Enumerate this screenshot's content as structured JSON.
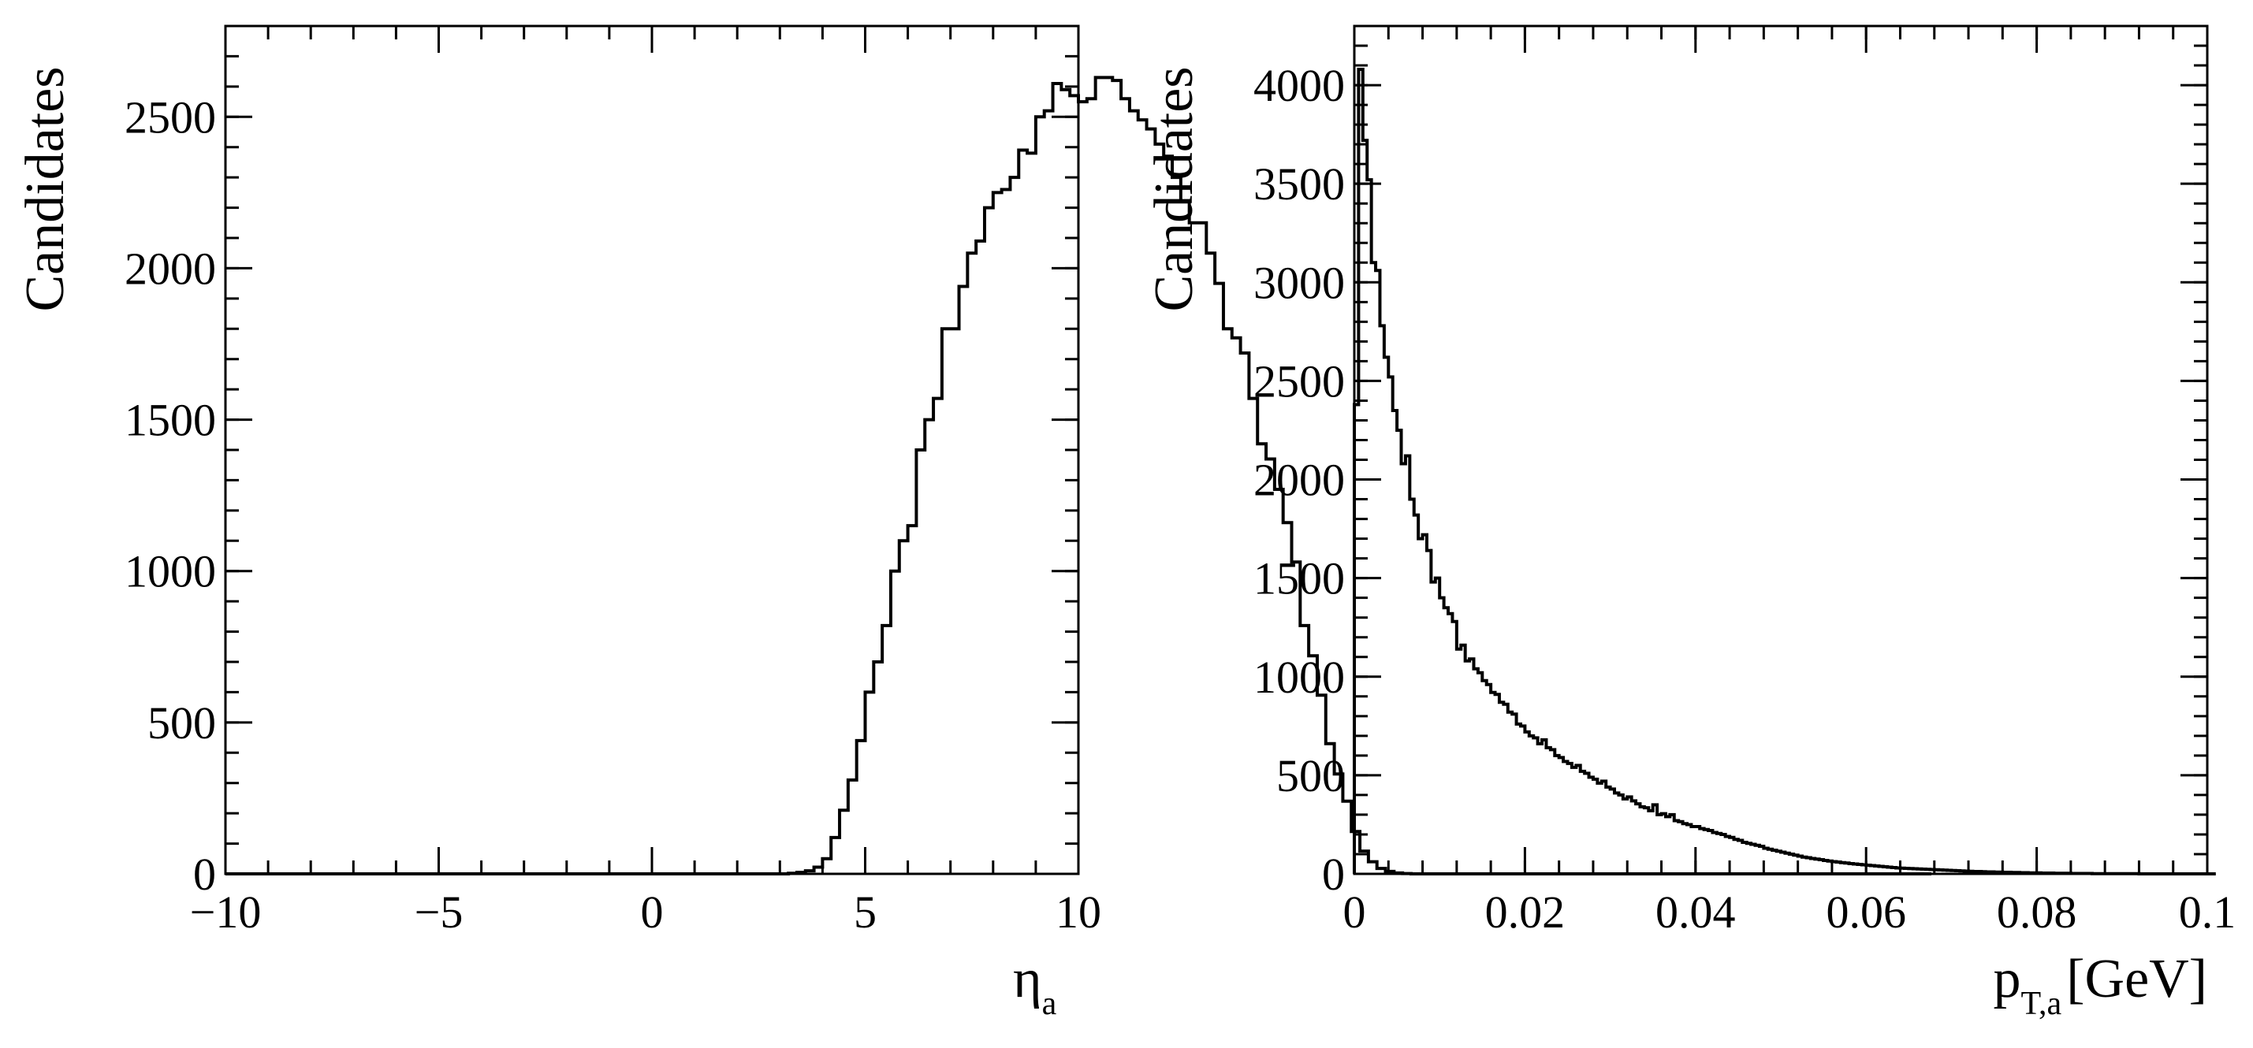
{
  "chart_data": [
    {
      "type": "histogram",
      "ylabel": "Candidates",
      "xlabel_main": "η",
      "xlabel_sub": "a",
      "xlim": [
        -10,
        10
      ],
      "ylim": [
        0,
        2800
      ],
      "xticks": [
        -10,
        -5,
        0,
        5,
        10
      ],
      "xtick_labels": [
        "−10",
        "−5",
        "0",
        "5",
        "10"
      ],
      "yticks": [
        0,
        500,
        1000,
        1500,
        2000,
        2500
      ],
      "ytick_labels": [
        "0",
        "500",
        "1000",
        "1500",
        "2000",
        "2500"
      ],
      "grid": false,
      "legend": "none",
      "line_color": "#000000",
      "bin_start": -10,
      "bin_width": 0.2,
      "values": [
        0,
        0,
        0,
        0,
        0,
        0,
        0,
        0,
        0,
        0,
        0,
        0,
        0,
        0,
        0,
        0,
        0,
        0,
        0,
        0,
        0,
        0,
        0,
        0,
        0,
        0,
        0,
        0,
        0,
        0,
        0,
        0,
        0,
        0,
        0,
        0,
        0,
        0,
        0,
        0,
        0,
        0,
        0,
        0,
        0,
        0,
        0,
        0,
        0,
        0,
        0,
        0,
        0,
        0,
        0,
        0,
        0,
        0,
        0,
        0,
        0,
        0,
        0,
        0,
        0,
        0,
        2,
        5,
        10,
        22,
        50,
        120,
        210,
        310,
        440,
        600,
        700,
        820,
        1000,
        1100,
        1150,
        1400,
        1500,
        1570,
        1800,
        1800,
        1940,
        2050,
        2090,
        2200,
        2250,
        2260,
        2300,
        2390,
        2380,
        2500,
        2520,
        2610,
        2590,
        2570,
        2550,
        2560,
        2630,
        2630,
        2620,
        2560,
        2520,
        2490,
        2460,
        2410,
        2370,
        2300,
        2220,
        2150,
        2150,
        2050,
        1950,
        1800,
        1770,
        1720,
        1570,
        1420,
        1370,
        1270,
        1160,
        1030,
        820,
        720,
        590,
        430,
        330,
        240,
        140,
        75,
        40,
        18,
        8,
        3,
        1,
        0,
        0,
        0,
        0,
        0,
        0,
        0,
        0,
        0,
        0,
        0,
        0,
        0,
        0,
        0,
        0,
        0,
        0,
        0,
        0,
        0,
        0,
        0,
        0,
        0,
        0,
        0,
        0,
        0,
        0,
        0,
        0,
        0,
        0,
        0,
        0,
        0,
        0,
        0,
        0,
        0,
        0,
        0,
        0,
        0,
        0,
        0,
        0,
        0,
        0,
        0,
        0,
        0,
        0,
        0,
        0,
        0,
        0,
        0,
        0,
        0
      ]
    },
    {
      "type": "histogram",
      "ylabel": "Candidates",
      "xlabel_main": "p",
      "xlabel_sub": "T,a",
      "xlabel_unit": "[GeV]",
      "xlim": [
        0,
        0.1
      ],
      "ylim": [
        0,
        4300
      ],
      "xticks": [
        0,
        0.02,
        0.04,
        0.06,
        0.08,
        0.1
      ],
      "xtick_labels": [
        "0",
        "0.02",
        "0.04",
        "0.06",
        "0.08",
        "0.1"
      ],
      "yticks": [
        0,
        500,
        1000,
        1500,
        2000,
        2500,
        3000,
        3500,
        4000
      ],
      "ytick_labels": [
        "0",
        "500",
        "1000",
        "1500",
        "2000",
        "2500",
        "3000",
        "3500",
        "4000"
      ],
      "grid": false,
      "legend": "none",
      "line_color": "#000000",
      "bin_start": 0,
      "bin_width": 0.0005,
      "values": [
        2380,
        4080,
        3720,
        3520,
        3100,
        3060,
        2780,
        2620,
        2520,
        2350,
        2250,
        2080,
        2120,
        1900,
        1820,
        1700,
        1720,
        1640,
        1480,
        1500,
        1400,
        1350,
        1320,
        1280,
        1140,
        1160,
        1080,
        1090,
        1040,
        1020,
        980,
        960,
        920,
        910,
        870,
        860,
        820,
        810,
        760,
        750,
        720,
        700,
        690,
        660,
        680,
        640,
        630,
        600,
        590,
        570,
        560,
        540,
        550,
        520,
        510,
        490,
        480,
        460,
        470,
        440,
        430,
        410,
        400,
        380,
        390,
        370,
        355,
        340,
        335,
        320,
        350,
        300,
        305,
        290,
        300,
        270,
        265,
        255,
        250,
        240,
        240,
        230,
        225,
        220,
        210,
        205,
        200,
        190,
        185,
        175,
        170,
        160,
        155,
        150,
        145,
        140,
        130,
        125,
        120,
        115,
        110,
        105,
        100,
        95,
        90,
        85,
        82,
        78,
        75,
        72,
        68,
        65,
        62,
        60,
        57,
        55,
        52,
        50,
        48,
        46,
        44,
        42,
        40,
        38,
        36,
        34,
        32,
        30,
        29,
        28,
        27,
        26,
        25,
        24,
        23,
        22,
        21,
        20,
        19,
        18,
        17,
        16,
        15,
        14,
        13,
        12,
        12,
        11,
        10,
        10,
        9,
        9,
        8,
        8,
        7,
        7,
        6,
        6,
        5,
        5,
        5,
        4,
        4,
        4,
        3,
        3,
        3,
        3,
        2,
        2,
        2,
        2,
        2,
        1,
        1,
        1,
        1,
        1,
        1,
        1,
        1,
        1,
        1,
        1,
        0,
        0,
        0,
        0,
        0,
        0,
        0,
        0,
        0,
        0,
        0,
        0,
        0,
        0,
        0,
        0,
        0,
        0
      ]
    }
  ]
}
